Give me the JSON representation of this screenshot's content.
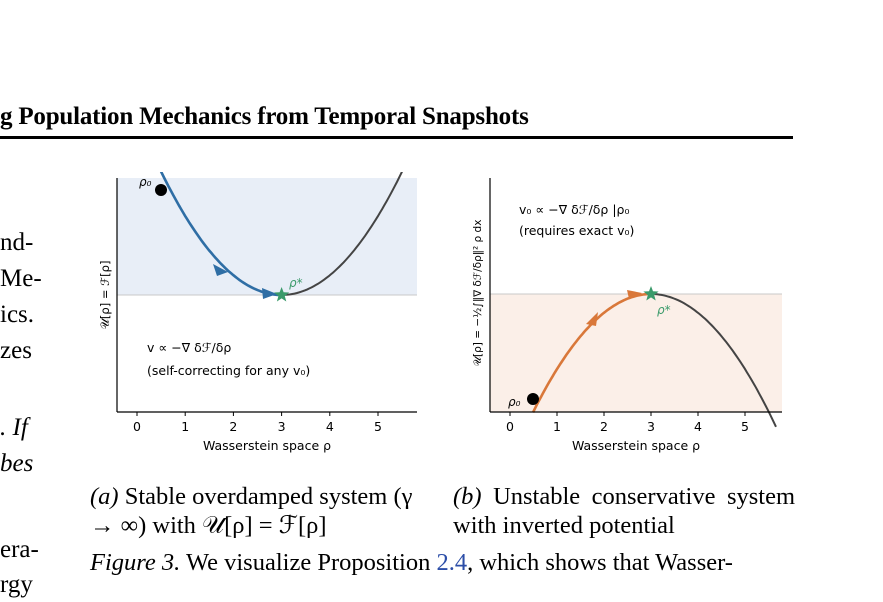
{
  "header": {
    "running_title": "g Population Mechanics from Temporal Snapshots"
  },
  "left_column_fragments": [
    "nd-",
    "Me-",
    "ics.",
    "zes",
    ". If",
    "bes",
    "era-",
    "rgy"
  ],
  "panel_a": {
    "rho0_label": "ρ₀",
    "rho_star_label": "ρ*",
    "ylabel": "𝒰[ρ] = ℱ[ρ]",
    "xlabel": "Wasserstein space  ρ",
    "x_ticks": [
      "0",
      "1",
      "2",
      "3",
      "4",
      "5"
    ],
    "annotation_line1": "v ∝ −∇ δℱ/δρ",
    "annotation_line2": "(self-correcting for any v₀)",
    "curve_color": "#2f6ea5",
    "fill_color": "#e8eef7"
  },
  "panel_b": {
    "rho0_label": "ρ₀",
    "rho_star_label": "ρ*",
    "ylabel": "𝒰[ρ] = −½∫‖∇ δℱ/δρ‖² ρ dx",
    "xlabel": "Wasserstein space  ρ",
    "x_ticks": [
      "0",
      "1",
      "2",
      "3",
      "4",
      "5"
    ],
    "annotation_line1": "v₀ ∝ −∇ δℱ/δρ |ρ₀",
    "annotation_line2": "(requires exact v₀)",
    "curve_color": "#d9783a",
    "fill_color": "#fbefe8"
  },
  "captions": {
    "a_label": "(a)",
    "a_text": " Stable overdamped system (γ → ∞) with 𝒰[ρ] = ℱ[ρ]",
    "b_label": "(b)",
    "b_text": " Unstable conservative system with inverted potential",
    "fig_label": "Figure 3.",
    "fig_text1": " We visualize Proposition ",
    "fig_ref": "2.4",
    "fig_text2": ", which shows that Wasser-"
  }
}
